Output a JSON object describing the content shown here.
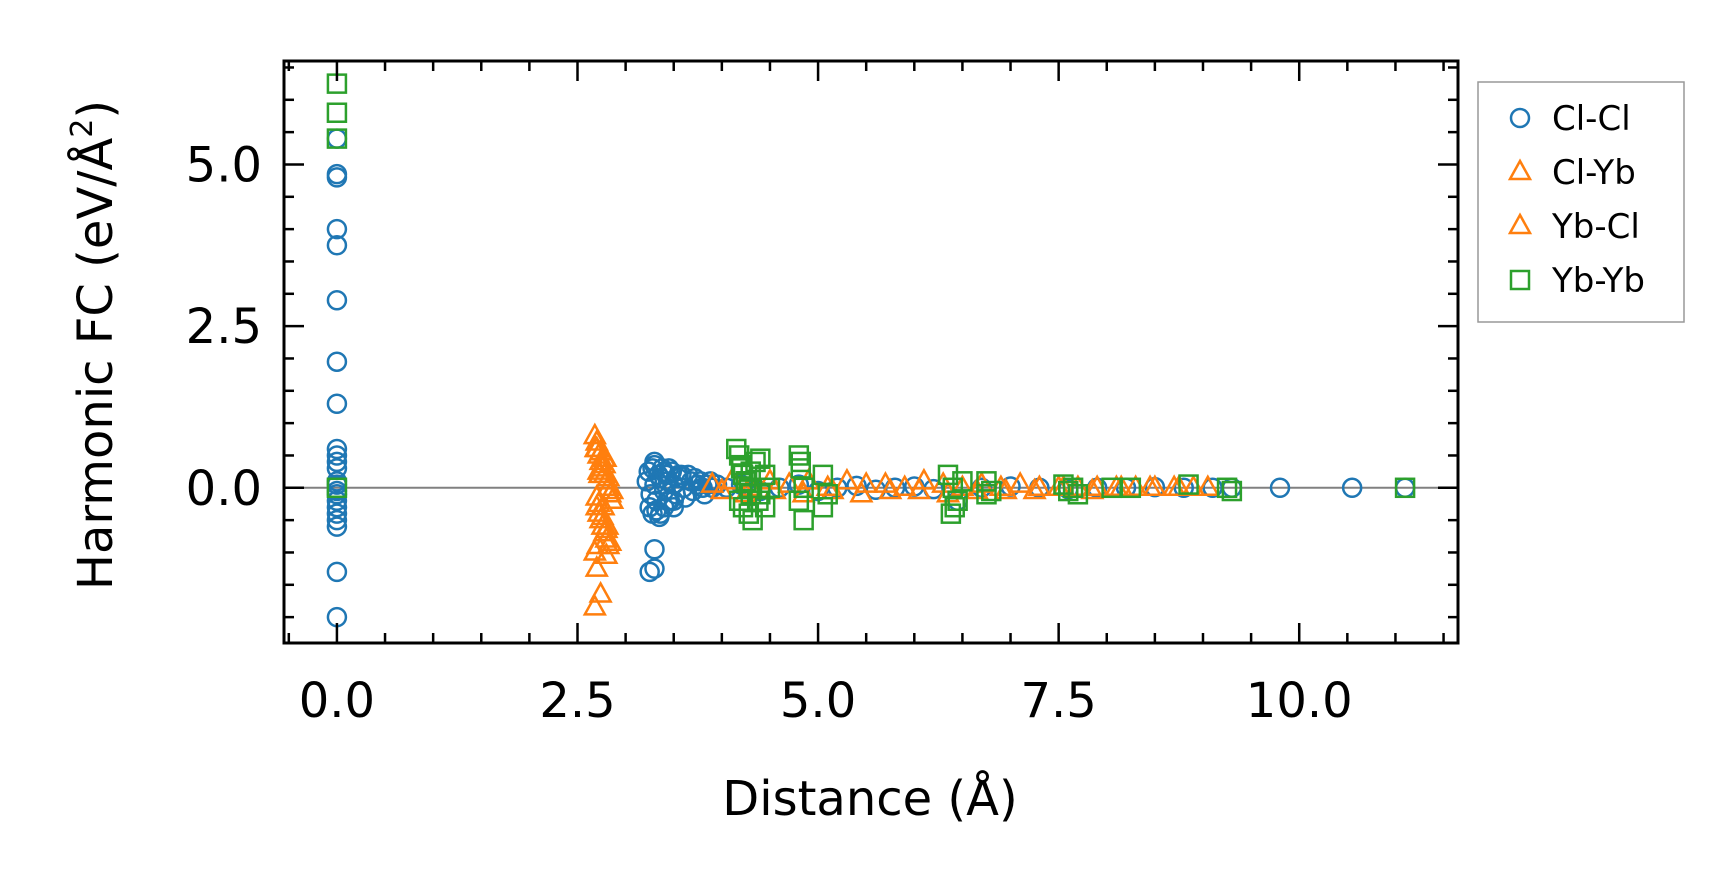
{
  "chart_data": {
    "type": "scatter",
    "title": "",
    "xlabel": "Distance (Å)",
    "ylabel_main": "Harmonic FC (eV/Å",
    "ylabel_sup": "2",
    "ylabel_close": ")",
    "xlim": [
      -0.55,
      11.65
    ],
    "ylim": [
      -2.4,
      6.6
    ],
    "xticks": [
      0.0,
      2.5,
      5.0,
      7.5,
      10.0
    ],
    "xtick_labels": [
      "0.0",
      "2.5",
      "5.0",
      "7.5",
      "10.0"
    ],
    "yticks": [
      0.0,
      2.5,
      5.0
    ],
    "ytick_labels": [
      "0.0",
      "2.5",
      "5.0"
    ],
    "zero_line": 0,
    "legend_position": "outside right, top",
    "series": [
      {
        "name": "Cl-Cl",
        "marker": "circle",
        "color": "#1f77b4",
        "x": [
          0,
          0,
          0,
          0,
          0,
          0,
          0,
          0,
          0,
          0,
          0,
          0,
          0,
          0,
          0,
          0,
          0,
          0,
          0,
          0,
          0,
          0,
          0,
          3.22,
          3.24,
          3.26,
          3.28,
          3.3,
          3.32,
          3.34,
          3.36,
          3.38,
          3.4,
          3.42,
          3.44,
          3.46,
          3.48,
          3.5,
          3.52,
          3.55,
          3.58,
          3.6,
          3.62,
          3.65,
          3.68,
          3.7,
          3.72,
          3.75,
          3.78,
          3.8,
          3.82,
          3.85,
          3.88,
          3.9,
          3.95,
          3.25,
          3.28,
          3.3,
          3.35,
          3.4,
          3.45,
          3.5,
          3.3,
          3.32,
          3.36,
          3.4,
          3.44,
          3.5,
          3.55,
          3.25,
          3.3,
          3.3,
          4.05,
          4.2,
          4.4,
          4.6,
          4.8,
          5.0,
          5.2,
          5.4,
          5.6,
          5.8,
          6.0,
          6.2,
          6.45,
          6.7,
          7.0,
          7.3,
          7.6,
          7.9,
          8.2,
          8.5,
          8.8,
          9.1,
          9.3,
          9.8,
          10.55,
          11.1
        ],
        "y": [
          5.4,
          4.85,
          4.8,
          4.0,
          3.75,
          2.9,
          1.95,
          1.3,
          0.6,
          0.5,
          0.4,
          0.3,
          0.1,
          0.05,
          -0.05,
          -0.1,
          -0.2,
          -0.3,
          -0.4,
          -0.5,
          -0.6,
          -1.3,
          -2.0,
          0.1,
          0.25,
          -0.1,
          0.3,
          0.05,
          -0.2,
          0.2,
          0.15,
          0.3,
          -0.05,
          0.2,
          0.1,
          -0.2,
          0.25,
          0.05,
          -0.1,
          0.15,
          0.2,
          0.0,
          -0.15,
          0.2,
          0.1,
          -0.05,
          0.15,
          0.05,
          0.1,
          0.0,
          -0.1,
          0.05,
          0.1,
          0.0,
          0.05,
          -0.3,
          -0.4,
          0.35,
          -0.45,
          -0.3,
          0.3,
          -0.2,
          0.4,
          -0.35,
          -0.4,
          0.25,
          -0.2,
          -0.3,
          0.2,
          -1.3,
          -1.25,
          -0.95,
          0.0,
          0.05,
          -0.05,
          0.0,
          0.05,
          -0.05,
          0.0,
          0.03,
          -0.03,
          0.0,
          0.02,
          -0.02,
          -0.2,
          0.0,
          0.02,
          0.0,
          -0.02,
          0.0,
          0.0,
          0.01,
          0.0,
          0.0,
          0.0,
          0.0,
          0.0,
          0.0
        ]
      },
      {
        "name": "Cl-Yb",
        "marker": "triangle",
        "color": "#ff7f0e",
        "x": [
          2.68,
          2.7,
          2.72,
          2.74,
          2.76,
          2.78,
          2.8,
          2.82,
          2.84,
          2.86,
          2.7,
          2.72,
          2.74,
          2.76,
          2.78,
          2.8,
          2.82,
          2.7,
          2.74,
          2.78,
          2.82,
          2.86,
          2.72,
          2.76,
          2.8,
          2.84,
          2.68,
          2.7,
          2.8,
          2.72,
          2.78,
          2.7,
          2.74,
          2.68,
          3.9,
          4.1,
          4.3,
          4.5,
          4.7,
          4.9,
          5.1,
          5.3,
          5.5,
          5.7,
          5.9,
          6.1,
          6.3,
          6.5,
          6.7,
          6.9,
          7.1,
          7.3,
          7.5,
          7.7,
          7.9,
          8.1,
          8.3,
          8.5,
          8.7,
          8.9
        ],
        "y": [
          0.8,
          0.6,
          0.5,
          0.4,
          0.3,
          0.2,
          0.1,
          0.0,
          -0.1,
          -0.2,
          -0.3,
          -0.4,
          -0.5,
          -0.6,
          -0.7,
          -0.8,
          -0.9,
          0.7,
          0.55,
          0.35,
          0.15,
          -0.05,
          -0.25,
          -0.45,
          -0.65,
          -0.85,
          -1.0,
          -0.15,
          -1.05,
          0.25,
          0.45,
          -1.25,
          -1.65,
          -1.85,
          0.05,
          0.1,
          0.0,
          0.1,
          0.05,
          0.1,
          0.0,
          0.1,
          0.05,
          0.05,
          0.0,
          0.1,
          0.05,
          0.0,
          0.05,
          0.0,
          0.05,
          0.0,
          0.0,
          0.0,
          0.0,
          0.0,
          0.0,
          0.0,
          0.0,
          0.0
        ]
      },
      {
        "name": "Yb-Cl",
        "marker": "triangle",
        "color": "#ff7f0e",
        "x": [
          2.69,
          2.73,
          2.77,
          2.81,
          2.71,
          2.79,
          4.0,
          4.25,
          4.55,
          4.85,
          5.15,
          5.45,
          5.75,
          6.05,
          6.35,
          6.65,
          6.95,
          7.25,
          7.55,
          7.85,
          8.15,
          8.45,
          8.75,
          9.05
        ],
        "y": [
          0.6,
          0.2,
          -0.3,
          -0.6,
          -0.9,
          0.45,
          -0.05,
          -0.1,
          -0.05,
          -0.1,
          -0.05,
          -0.1,
          -0.05,
          -0.05,
          -0.1,
          -0.05,
          -0.05,
          -0.05,
          0.0,
          -0.05,
          0.0,
          0.0,
          0.0,
          0.0
        ]
      },
      {
        "name": "Yb-Yb",
        "marker": "square",
        "color": "#2ca02c",
        "x": [
          0,
          0,
          0,
          0,
          4.15,
          4.18,
          4.2,
          4.22,
          4.25,
          4.28,
          4.3,
          4.35,
          4.4,
          4.45,
          4.5,
          4.18,
          4.22,
          4.28,
          4.32,
          4.38,
          4.45,
          4.2,
          4.3,
          4.4,
          4.25,
          4.8,
          4.82,
          4.85,
          4.8,
          4.85,
          4.82,
          5.05,
          5.1,
          5.05,
          6.35,
          6.4,
          6.45,
          6.38,
          6.42,
          6.5,
          6.75,
          6.8,
          6.75,
          7.55,
          7.6,
          7.65,
          7.7,
          8.05,
          8.25,
          8.85,
          9.25,
          9.3,
          11.1
        ],
        "y": [
          6.25,
          5.8,
          5.4,
          0.0,
          0.6,
          0.5,
          0.3,
          0.2,
          0.1,
          0.0,
          -0.1,
          0.4,
          0.45,
          0.2,
          0.0,
          -0.2,
          -0.3,
          -0.4,
          -0.5,
          -0.2,
          -0.3,
          0.35,
          0.25,
          -0.1,
          0.1,
          0.5,
          0.3,
          0.0,
          -0.2,
          -0.5,
          0.4,
          0.2,
          -0.1,
          -0.3,
          0.2,
          0.0,
          -0.2,
          -0.4,
          -0.3,
          0.1,
          0.1,
          -0.05,
          -0.1,
          0.05,
          -0.05,
          0.0,
          -0.1,
          0.0,
          0.0,
          0.05,
          0.0,
          -0.05,
          0.0
        ]
      }
    ]
  }
}
